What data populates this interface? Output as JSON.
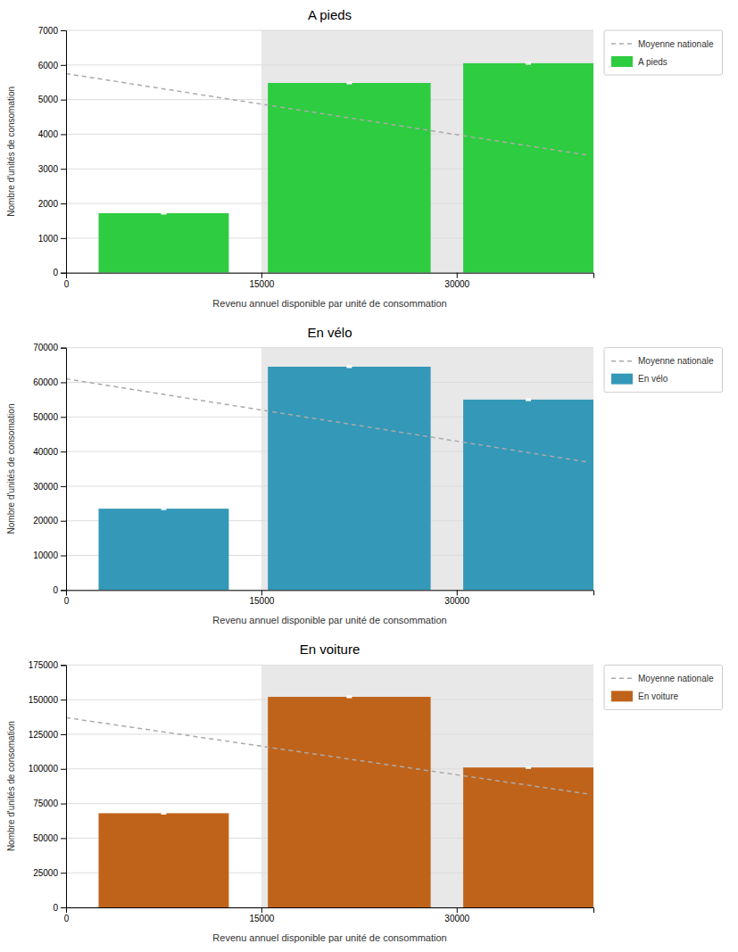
{
  "chart_data": [
    {
      "type": "bar",
      "title": "A pieds",
      "xlabel": "Revenu annuel disponible par unité de consommation",
      "ylabel": "Nombre d'unités de consomation",
      "xlim": [
        0,
        40500
      ],
      "xticks": [
        0,
        15000,
        30000
      ],
      "ylim": [
        0,
        7000
      ],
      "yticks": [
        0,
        1000,
        2000,
        3000,
        4000,
        5000,
        6000,
        7000
      ],
      "grid": true,
      "legend": "upper right",
      "shade": {
        "start": 15000,
        "color": "#e8e8e8"
      },
      "series": [
        {
          "name": "Moyenne nationale",
          "type": "line",
          "color": "#aaaaaa",
          "line_style": "dashed",
          "x": [
            0,
            40000
          ],
          "values": [
            5750,
            3400
          ]
        },
        {
          "name": "A pieds",
          "type": "bar",
          "color": "#2ecc40",
          "x": [
            2500,
            15500,
            30500
          ],
          "widths": [
            10000,
            12500,
            10000
          ],
          "values": [
            1720,
            5480,
            6050
          ],
          "errors": [
            21,
            21,
            21
          ]
        }
      ]
    },
    {
      "type": "bar",
      "title": "En vélo",
      "xlabel": "Revenu annuel disponible par unité de consommation",
      "ylabel": "Nombre d'unités de consomation",
      "xlim": [
        0,
        40500
      ],
      "xticks": [
        0,
        15000,
        30000
      ],
      "ylim": [
        0,
        70000
      ],
      "yticks": [
        0,
        10000,
        20000,
        30000,
        40000,
        50000,
        60000,
        70000
      ],
      "grid": true,
      "legend": "upper right",
      "shade": {
        "start": 15000,
        "color": "#e8e8e8"
      },
      "series": [
        {
          "name": "Moyenne nationale",
          "type": "line",
          "color": "#aaaaaa",
          "line_style": "dashed",
          "x": [
            0,
            40000
          ],
          "values": [
            61000,
            37000
          ]
        },
        {
          "name": "En vélo",
          "type": "bar",
          "color": "#3498b8",
          "x": [
            2500,
            15500,
            30500
          ],
          "widths": [
            10000,
            12500,
            10000
          ],
          "values": [
            23500,
            64500,
            55000
          ],
          "errors": [
            210,
            210,
            210
          ]
        }
      ]
    },
    {
      "type": "bar",
      "title": "En voiture",
      "xlabel": "Revenu annuel disponible par unité de consommation",
      "ylabel": "Nombre d'unités de consomation",
      "xlim": [
        0,
        40500
      ],
      "xticks": [
        0,
        15000,
        30000
      ],
      "ylim": [
        0,
        175000
      ],
      "yticks": [
        0,
        25000,
        50000,
        75000,
        100000,
        125000,
        150000,
        175000
      ],
      "grid": true,
      "legend": "upper right",
      "shade": {
        "start": 15000,
        "color": "#e8e8e8"
      },
      "series": [
        {
          "name": "Moyenne nationale",
          "type": "line",
          "color": "#aaaaaa",
          "line_style": "dashed",
          "x": [
            0,
            40000
          ],
          "values": [
            137000,
            82000
          ]
        },
        {
          "name": "En voiture",
          "type": "bar",
          "color": "#c0631a",
          "x": [
            2500,
            15500,
            30500
          ],
          "widths": [
            10000,
            12500,
            10000
          ],
          "values": [
            68000,
            152000,
            101000
          ],
          "errors": [
            525,
            525,
            525
          ]
        }
      ]
    }
  ]
}
